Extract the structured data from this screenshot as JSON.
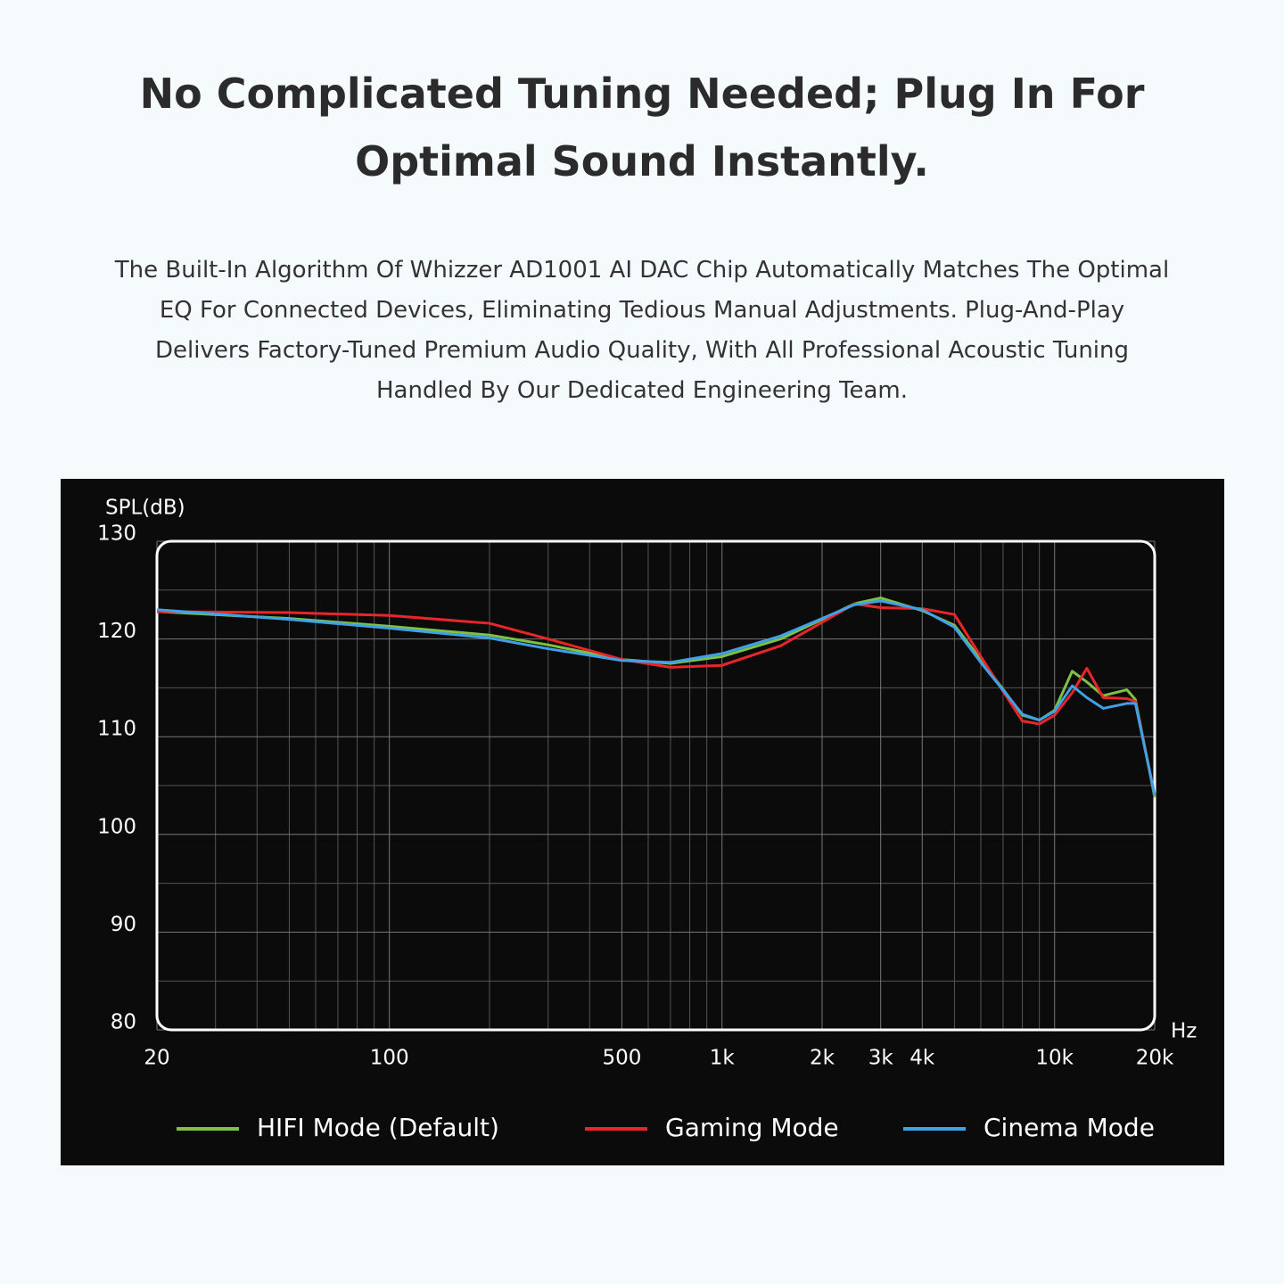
{
  "header": {
    "title_lines": [
      "No Complicated Tuning Needed; Plug In For",
      "Optimal Sound Instantly."
    ],
    "description_lines": [
      "The Built-In Algorithm Of Whizzer AD1001 AI DAC Chip Automatically Matches The Optimal",
      "EQ For Connected Devices, Eliminating Tedious Manual Adjustments. Plug-And-Play",
      "Delivers Factory-Tuned Premium Audio Quality, With All Professional Acoustic Tuning",
      "Handled By Our Dedicated Engineering Team."
    ]
  },
  "chart_data": {
    "type": "line",
    "y_label": "SPL(dB)",
    "x_label": "Hz",
    "x_log": true,
    "xlim": [
      20,
      20000
    ],
    "xticks": [
      20,
      100,
      500,
      {
        "value": 1000,
        "label": "1k"
      },
      {
        "value": 2000,
        "label": "2k"
      },
      {
        "value": 3000,
        "label": "3k"
      },
      {
        "value": 4000,
        "label": "4k"
      },
      {
        "value": 10000,
        "label": "10k"
      },
      {
        "value": 20000,
        "label": "20k"
      }
    ],
    "x_minor_grid": [
      30,
      40,
      50,
      60,
      70,
      80,
      90,
      200,
      300,
      400,
      600,
      700,
      800,
      900,
      5000,
      6000,
      7000,
      8000,
      9000
    ],
    "ylim": [
      80,
      130
    ],
    "yticks": [
      80,
      90,
      100,
      110,
      120,
      130
    ],
    "y_minor_grid": [
      85,
      95,
      105,
      115,
      125
    ],
    "grid": true,
    "x": [
      20,
      50,
      100,
      200,
      300,
      500,
      700,
      1000,
      1500,
      2000,
      2500,
      3000,
      4000,
      5000,
      6000,
      8000,
      9000,
      10000,
      11300,
      12500,
      14000,
      16500,
      17500,
      20000
    ],
    "series": [
      {
        "name": "HIFI Mode (Default)",
        "color": "#7dc242",
        "values": [
          122.8,
          122.1,
          121.3,
          120.4,
          119.4,
          117.9,
          117.5,
          118.2,
          120,
          122,
          123.6,
          124.2,
          122.9,
          121.4,
          117.9,
          112.2,
          111.7,
          112.7,
          116.7,
          115.6,
          114.2,
          114.8,
          113.8,
          103.8
        ]
      },
      {
        "name": "Gaming Mode",
        "color": "#e8262a",
        "values": [
          122.8,
          122.7,
          122.4,
          121.6,
          120.0,
          117.9,
          117.1,
          117.3,
          119.3,
          121.7,
          123.6,
          123.2,
          123.1,
          122.5,
          118.2,
          111.6,
          111.3,
          112.2,
          114.5,
          117.0,
          114.0,
          113.9,
          113.6,
          104.0
        ]
      },
      {
        "name": "Cinema Mode",
        "color": "#3fa1e6",
        "values": [
          123.0,
          122.0,
          121.1,
          120.1,
          119.0,
          117.8,
          117.6,
          118.5,
          120.3,
          122.1,
          123.5,
          123.9,
          123.0,
          121.2,
          117.6,
          112.3,
          111.7,
          112.6,
          115.2,
          114.0,
          112.9,
          113.4,
          113.4,
          104.0
        ]
      }
    ]
  }
}
